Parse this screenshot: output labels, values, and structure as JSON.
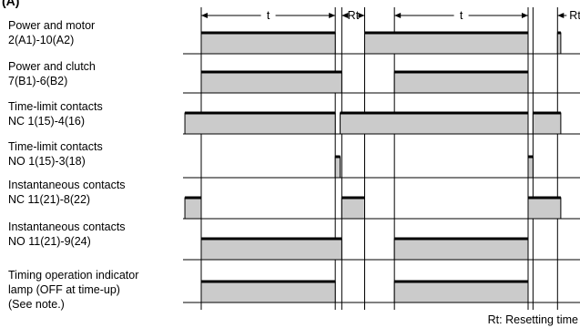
{
  "title_fragment": "(A)",
  "interval_labels": {
    "timing": "t",
    "resetting": "Rt"
  },
  "note": "Rt: Resetting time",
  "rows": [
    {
      "label_lines": [
        "Power and motor",
        "2(A1)-10(A2)"
      ],
      "high": [
        [
          0,
          0.41
        ],
        [
          0.5,
          1.0
        ],
        [
          1.09,
          1.1
        ]
      ]
    },
    {
      "label_lines": [
        "Power and clutch",
        "7(B1)-6(B2)"
      ],
      "high": [
        [
          0,
          0.43
        ],
        [
          0.591,
          1.0
        ]
      ]
    },
    {
      "label_lines": [
        "Time-limit contacts",
        "NC 1(15)-4(16)"
      ],
      "high": [
        [
          -0.05,
          0.41
        ],
        [
          0.425,
          1.0
        ],
        [
          1.015,
          1.1
        ]
      ]
    },
    {
      "label_lines": [
        "Time-limit contacts",
        "NO 1(15)-3(18)"
      ],
      "high": [
        [
          0.41,
          0.425
        ],
        [
          1.0,
          1.015
        ]
      ]
    },
    {
      "label_lines": [
        "Instantaneous contacts",
        "NC 11(21)-8(22)"
      ],
      "high": [
        [
          -0.05,
          0.0
        ],
        [
          0.43,
          0.5
        ],
        [
          1.0,
          1.1
        ]
      ]
    },
    {
      "label_lines": [
        "Instantaneous contacts",
        "NO 11(21)-9(24)"
      ],
      "high": [
        [
          0,
          0.43
        ],
        [
          0.591,
          1.0
        ]
      ]
    },
    {
      "label_lines": [
        "Timing operation indicator",
        "lamp (OFF at time-up)",
        "(See note.)"
      ],
      "high": [
        [
          0,
          0.41
        ],
        [
          0.591,
          1.0
        ]
      ]
    }
  ]
}
